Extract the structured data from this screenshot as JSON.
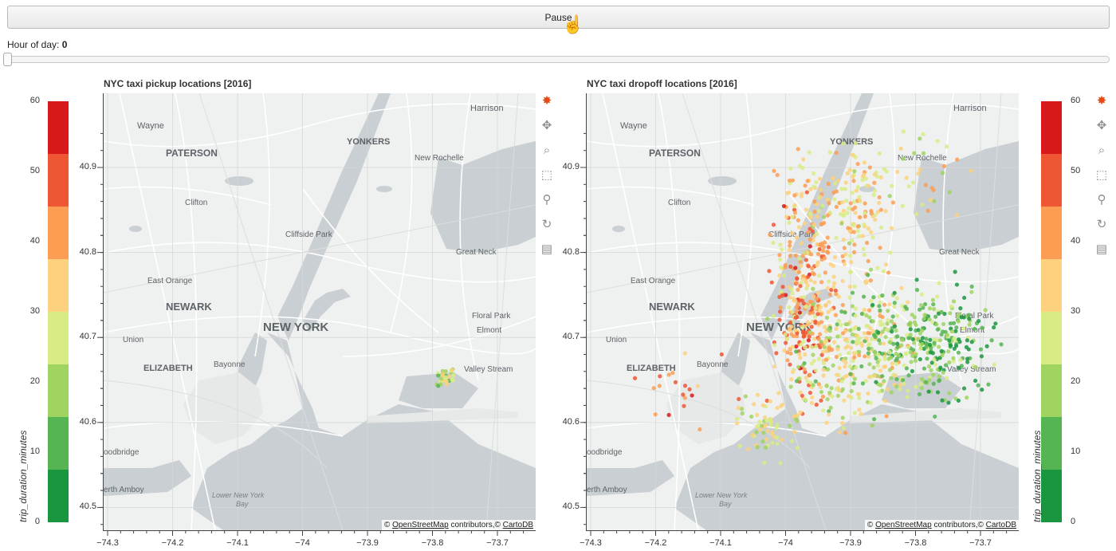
{
  "controls": {
    "play_button_label": "Pause",
    "slider_label": "Hour of day:",
    "slider_value": "0",
    "slider_fraction": 0.0
  },
  "plots": [
    {
      "title": "NYC taxi pickup locations [2016]"
    },
    {
      "title": "NYC taxi dropoff locations [2016]"
    }
  ],
  "axes": {
    "x_ticks": [
      "−74.3",
      "−74.2",
      "−74.1",
      "−74",
      "−73.9",
      "−73.8",
      "−73.7"
    ],
    "y_ticks": [
      "40.9",
      "40.8",
      "40.7",
      "40.6",
      "40.5"
    ]
  },
  "colorbar": {
    "title": "trip_duration_minutes",
    "ticks": [
      "60",
      "50",
      "40",
      "30",
      "20",
      "10",
      "0"
    ],
    "colors": [
      "#d7191c",
      "#ee5634",
      "#fb9d52",
      "#fdd17d",
      "#d8ec85",
      "#a0d461",
      "#55b552",
      "#1a9641"
    ]
  },
  "attribution": {
    "prefix": "©",
    "osm": "OpenStreetMap",
    "middle": "contributors,©",
    "carto": "CartoDB"
  },
  "map_labels": [
    {
      "text": "Harrison"
    },
    {
      "text": "Wayne"
    },
    {
      "text": "YONKERS"
    },
    {
      "text": "PATERSON"
    },
    {
      "text": "New Rochelle"
    },
    {
      "text": "Clifton"
    },
    {
      "text": "Cliffside Park"
    },
    {
      "text": "Great Neck"
    },
    {
      "text": "East Orange"
    },
    {
      "text": "NEWARK"
    },
    {
      "text": "NEW YORK"
    },
    {
      "text": "Floral Park"
    },
    {
      "text": "Elmont"
    },
    {
      "text": "Union"
    },
    {
      "text": "ELIZABETH"
    },
    {
      "text": "Bayonne"
    },
    {
      "text": "Valley Stream"
    },
    {
      "text": "oodbridge"
    },
    {
      "text": "erth Amboy"
    },
    {
      "text": "Lower New York"
    },
    {
      "text": "Bay"
    }
  ],
  "toolbar_icons": [
    "bokeh-logo-icon",
    "pan-icon",
    "box-zoom-icon",
    "box-select-icon",
    "wheel-zoom-icon",
    "reset-icon",
    "hover-icon"
  ]
}
